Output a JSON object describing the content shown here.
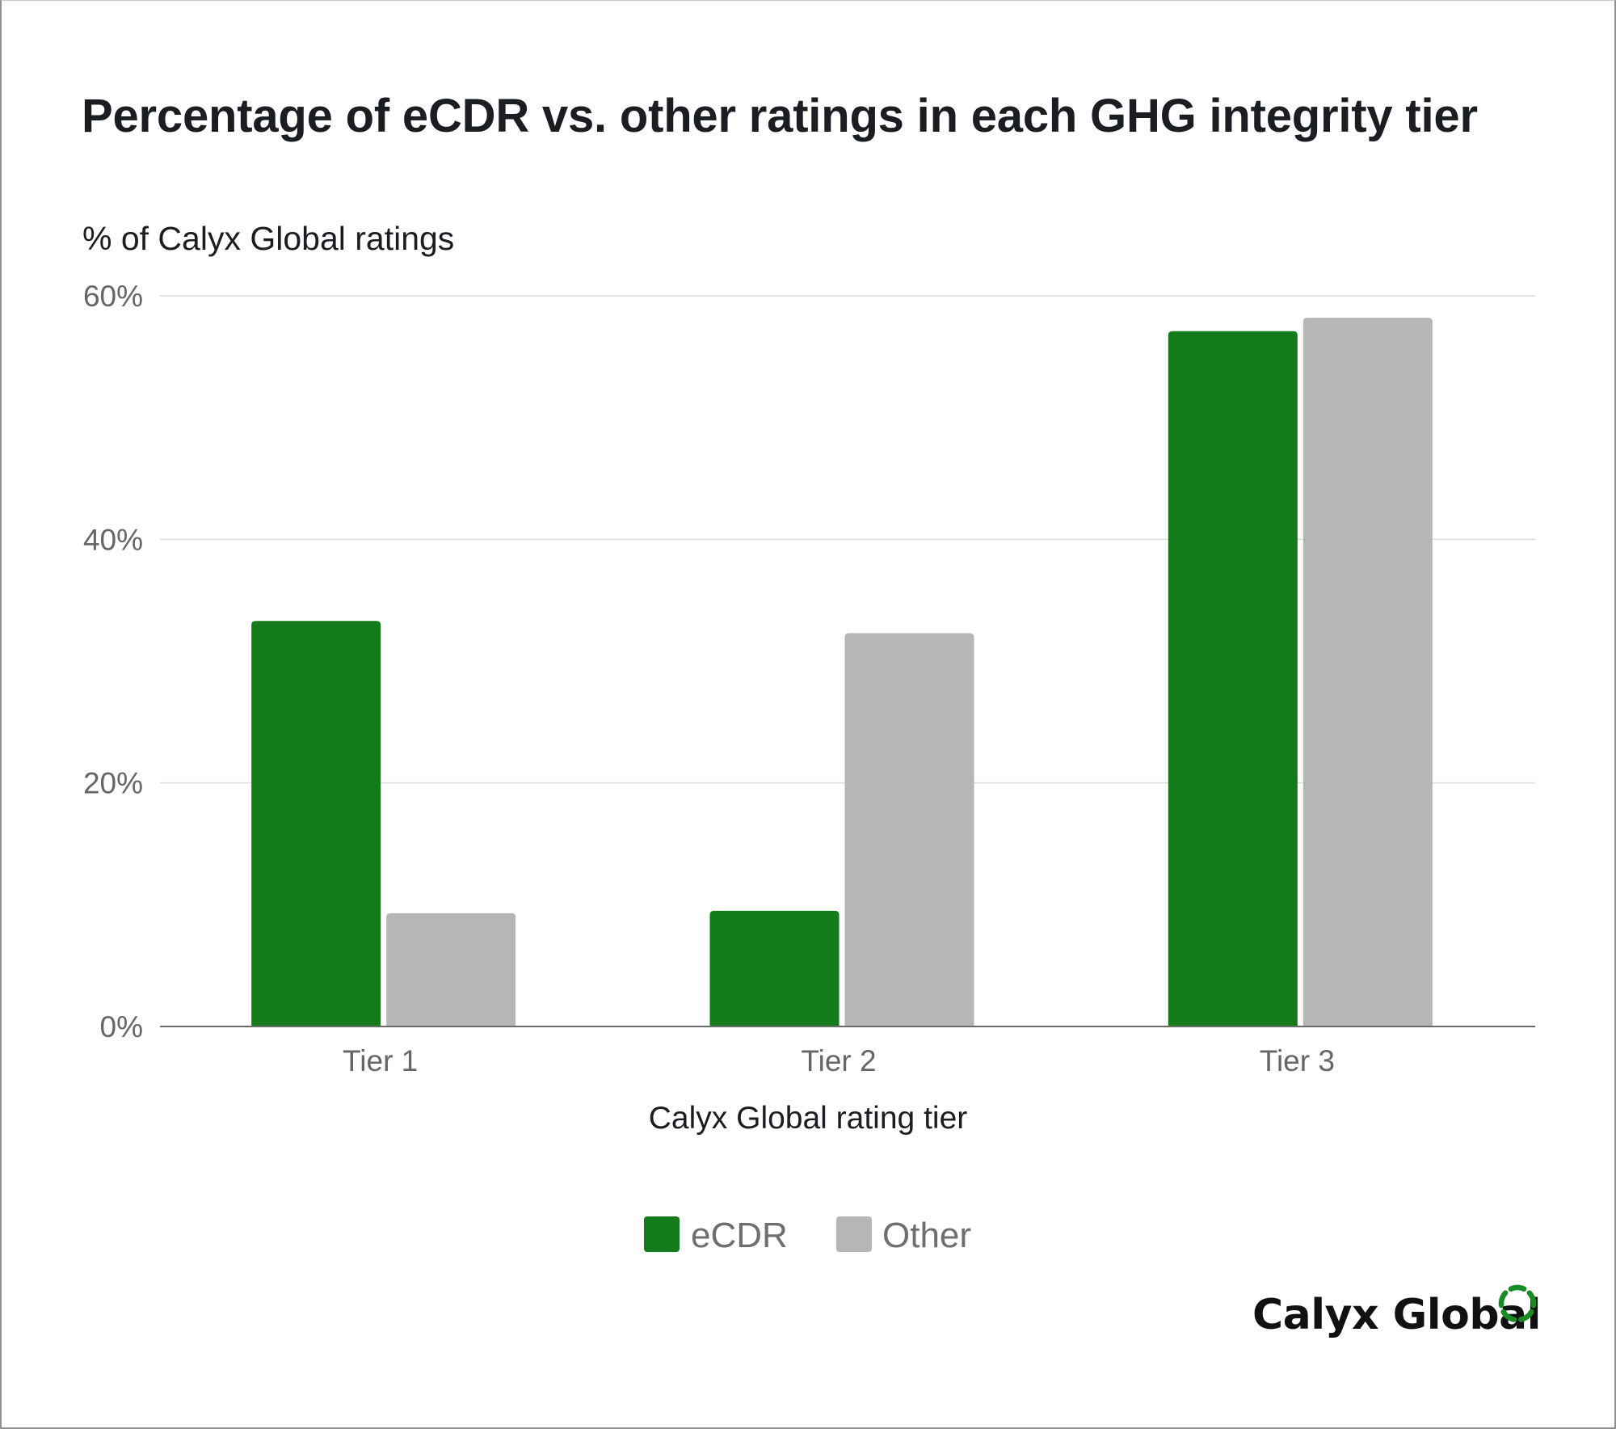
{
  "chart_data": {
    "type": "bar",
    "title": "Percentage of eCDR vs. other ratings in each GHG integrity tier",
    "ylabel": "% of Calyx Global ratings",
    "xlabel": "Calyx Global rating tier",
    "categories": [
      "Tier 1",
      "Tier 2",
      "Tier 3"
    ],
    "series": [
      {
        "name": "eCDR",
        "color": "#137b19",
        "values": [
          33.3,
          9.5,
          57.1
        ]
      },
      {
        "name": "Other",
        "color": "#b6b6b6",
        "values": [
          9.3,
          32.3,
          58.2
        ]
      }
    ],
    "ylim": [
      0,
      60
    ],
    "yticks": [
      0,
      20,
      40,
      60
    ],
    "ytick_labels": [
      "0%",
      "20%",
      "40%",
      "60%"
    ],
    "grid": true,
    "legend_position": "bottom-center"
  },
  "branding": {
    "logo_text": "Calyx Global",
    "logo_icon": "dashed-ring-icon",
    "logo_color": "#1a8a22"
  }
}
